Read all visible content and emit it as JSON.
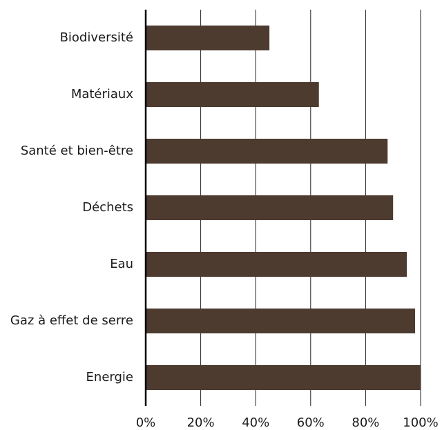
{
  "chart_data": {
    "type": "hbar",
    "categories": [
      "Biodiversité",
      "Matériaux",
      "Santé et bien-être",
      "Déchets",
      "Eau",
      "Gaz à effet de serre",
      "Energie"
    ],
    "values": [
      45,
      63,
      88,
      90,
      95,
      98,
      100
    ],
    "color": "#4d3b30",
    "xlim": [
      0,
      100
    ],
    "xticks": [
      {
        "value": 0,
        "label": "0%"
      },
      {
        "value": 20,
        "label": "20%"
      },
      {
        "value": 40,
        "label": "40%"
      },
      {
        "value": 60,
        "label": "60%"
      },
      {
        "value": 80,
        "label": "80%"
      },
      {
        "value": 100,
        "label": "100%"
      }
    ],
    "grid": true
  }
}
